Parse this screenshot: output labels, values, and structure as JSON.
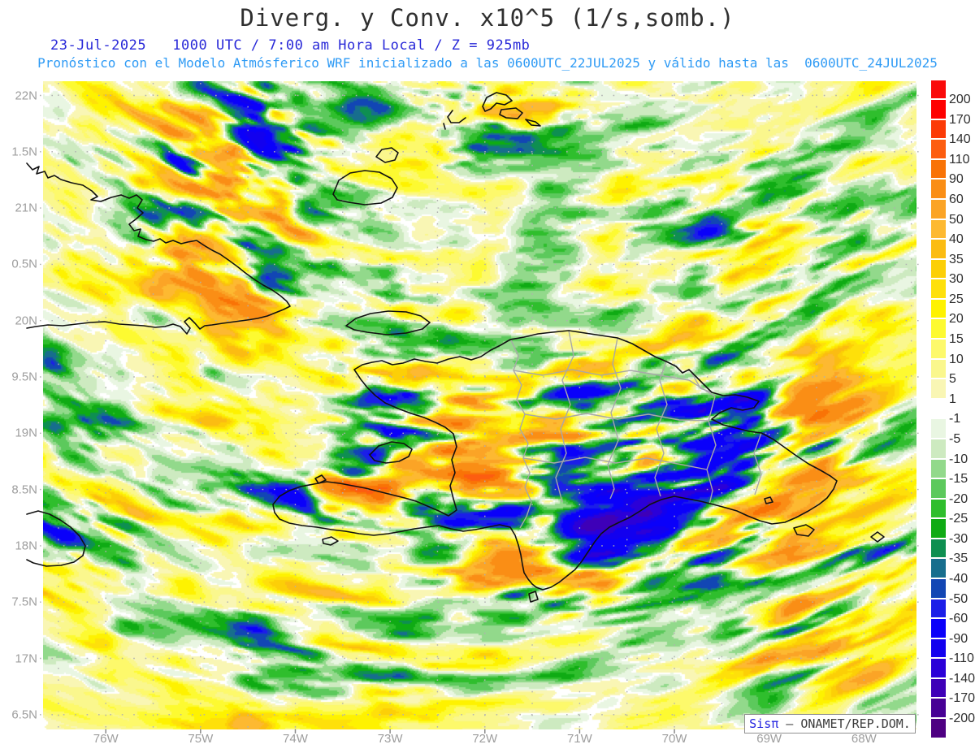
{
  "header": {
    "title": "Diverg. y Conv. x10^5 (1/s,somb.)",
    "subtitle": "23-Jul-2025   1000 UTC / 7:00 am Hora Local / Z = 925mb",
    "forecast_line": "Pronóstico con el Modelo Atmósferico WRF inicializado a las 0600UTC_22JUL2025 y válido hasta las  0600UTC_24JUL2025"
  },
  "colors": {
    "title": "#2f2f2f",
    "subtitle": "#2929d8",
    "forecast": "#2f9bf5",
    "axis_labels": "#9e9e9e",
    "gridline": "#b0b0b0",
    "tick": "#8a8a8a",
    "coastline": "#111111",
    "province_border": "#a8a8a8",
    "colorbar_label": "#2e2e2e"
  },
  "axes": {
    "lat_labels": [
      "22N",
      "1.5N",
      "21N",
      "0.5N",
      "20N",
      "9.5N",
      "19N",
      "8.5N",
      "18N",
      "7.5N",
      "17N",
      "6.5N"
    ],
    "lon_labels": [
      "76W",
      "75W",
      "74W",
      "73W",
      "72W",
      "71W",
      "70W",
      "69W",
      "68W"
    ]
  },
  "colorbar": {
    "labels": [
      "200",
      "170",
      "140",
      "110",
      "90",
      "60",
      "50",
      "40",
      "35",
      "30",
      "25",
      "20",
      "15",
      "10",
      "5",
      "1",
      "-1",
      "-5",
      "-10",
      "-15",
      "-20",
      "-25",
      "-30",
      "-35",
      "-40",
      "-50",
      "-60",
      "-90",
      "-110",
      "-140",
      "-170",
      "-200"
    ],
    "colors": [
      "#fa0a0a",
      "#fe0000",
      "#fc3a06",
      "#fd5d10",
      "#f97306",
      "#fa8e15",
      "#fba426",
      "#fdb931",
      "#fbbc12",
      "#fccf07",
      "#fee00a",
      "#fef200",
      "#fdfa31",
      "#fdf96b",
      "#faf78d",
      "#f9f6b4",
      "#ffffff",
      "#e9f6e2",
      "#cdeac0",
      "#92d98b",
      "#5cc95c",
      "#2fbe2d",
      "#0fab14",
      "#0e8f51",
      "#176e8d",
      "#1246b4",
      "#1b1ee8",
      "#0a00fa",
      "#1200ef",
      "#2b00d8",
      "#3e00b8",
      "#470095",
      "#4e0082"
    ]
  },
  "attribution": {
    "system": "Sisπ",
    "separator": " – ",
    "org": "ONAMET/REP.DOM."
  },
  "chart_data": {
    "type": "heatmap",
    "title": "Diverg. y Conv. x10^5 (1/s,somb.)",
    "variable": "Divergencia y Convergencia (sombreado)",
    "units": "1/s x10^5",
    "level": "925mb",
    "valid_time": "23-Jul-2025 1000 UTC / 7:00 am Hora Local",
    "model": "WRF",
    "initialized": "0600UTC_22JUL2025",
    "valid_until": "0600UTC_24JUL2025",
    "x_axis_ticks": [
      "76W",
      "75W",
      "74W",
      "73W",
      "72W",
      "71W",
      "70W",
      "69W",
      "68W"
    ],
    "y_axis_ticks": [
      "22N",
      "1.5N",
      "21N",
      "0.5N",
      "20N",
      "9.5N",
      "19N",
      "8.5N",
      "18N",
      "7.5N",
      "17N",
      "6.5N"
    ],
    "shading_levels": [
      200,
      170,
      140,
      110,
      90,
      60,
      50,
      40,
      35,
      30,
      25,
      20,
      15,
      10,
      5,
      1,
      -1,
      -5,
      -10,
      -15,
      -20,
      -25,
      -30,
      -35,
      -40,
      -50,
      -60,
      -90,
      -110,
      -140,
      -170,
      -200
    ],
    "legend_position": "right",
    "grid": "dotted"
  }
}
